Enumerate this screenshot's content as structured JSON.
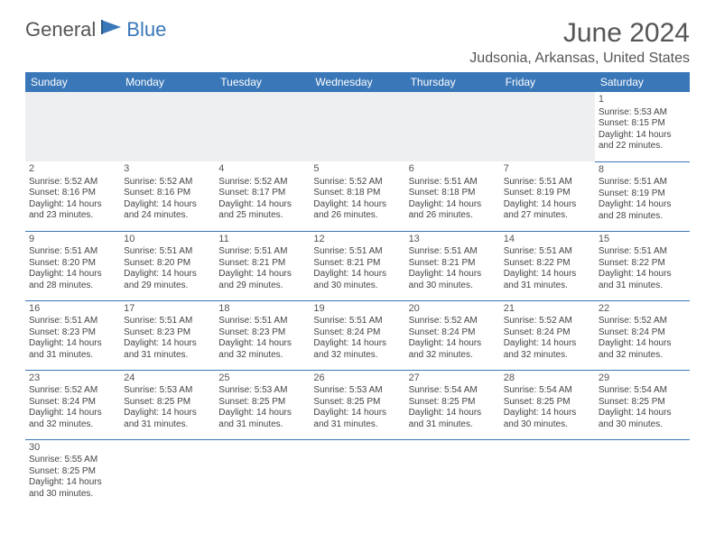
{
  "logo": {
    "general": "General",
    "blue": "Blue"
  },
  "title": "June 2024",
  "location": "Judsonia, Arkansas, United States",
  "weekdays": [
    "Sunday",
    "Monday",
    "Tuesday",
    "Wednesday",
    "Thursday",
    "Friday",
    "Saturday"
  ],
  "colors": {
    "header_bg": "#3a77b8",
    "header_text": "#ffffff",
    "text": "#444444",
    "blank_bg": "#edeff1",
    "border": "#3a77b8"
  },
  "typography": {
    "title_fontsize": 30,
    "location_fontsize": 16,
    "weekday_fontsize": 12,
    "cell_fontsize": 10
  },
  "calendar": {
    "blank_leading": 6,
    "days": [
      {
        "n": 1,
        "sunrise": "5:53 AM",
        "sunset": "8:15 PM",
        "dl_h": 14,
        "dl_m": 22
      },
      {
        "n": 2,
        "sunrise": "5:52 AM",
        "sunset": "8:16 PM",
        "dl_h": 14,
        "dl_m": 23
      },
      {
        "n": 3,
        "sunrise": "5:52 AM",
        "sunset": "8:16 PM",
        "dl_h": 14,
        "dl_m": 24
      },
      {
        "n": 4,
        "sunrise": "5:52 AM",
        "sunset": "8:17 PM",
        "dl_h": 14,
        "dl_m": 25
      },
      {
        "n": 5,
        "sunrise": "5:52 AM",
        "sunset": "8:18 PM",
        "dl_h": 14,
        "dl_m": 26
      },
      {
        "n": 6,
        "sunrise": "5:51 AM",
        "sunset": "8:18 PM",
        "dl_h": 14,
        "dl_m": 26
      },
      {
        "n": 7,
        "sunrise": "5:51 AM",
        "sunset": "8:19 PM",
        "dl_h": 14,
        "dl_m": 27
      },
      {
        "n": 8,
        "sunrise": "5:51 AM",
        "sunset": "8:19 PM",
        "dl_h": 14,
        "dl_m": 28
      },
      {
        "n": 9,
        "sunrise": "5:51 AM",
        "sunset": "8:20 PM",
        "dl_h": 14,
        "dl_m": 28
      },
      {
        "n": 10,
        "sunrise": "5:51 AM",
        "sunset": "8:20 PM",
        "dl_h": 14,
        "dl_m": 29
      },
      {
        "n": 11,
        "sunrise": "5:51 AM",
        "sunset": "8:21 PM",
        "dl_h": 14,
        "dl_m": 29
      },
      {
        "n": 12,
        "sunrise": "5:51 AM",
        "sunset": "8:21 PM",
        "dl_h": 14,
        "dl_m": 30
      },
      {
        "n": 13,
        "sunrise": "5:51 AM",
        "sunset": "8:21 PM",
        "dl_h": 14,
        "dl_m": 30
      },
      {
        "n": 14,
        "sunrise": "5:51 AM",
        "sunset": "8:22 PM",
        "dl_h": 14,
        "dl_m": 31
      },
      {
        "n": 15,
        "sunrise": "5:51 AM",
        "sunset": "8:22 PM",
        "dl_h": 14,
        "dl_m": 31
      },
      {
        "n": 16,
        "sunrise": "5:51 AM",
        "sunset": "8:23 PM",
        "dl_h": 14,
        "dl_m": 31
      },
      {
        "n": 17,
        "sunrise": "5:51 AM",
        "sunset": "8:23 PM",
        "dl_h": 14,
        "dl_m": 31
      },
      {
        "n": 18,
        "sunrise": "5:51 AM",
        "sunset": "8:23 PM",
        "dl_h": 14,
        "dl_m": 32
      },
      {
        "n": 19,
        "sunrise": "5:51 AM",
        "sunset": "8:24 PM",
        "dl_h": 14,
        "dl_m": 32
      },
      {
        "n": 20,
        "sunrise": "5:52 AM",
        "sunset": "8:24 PM",
        "dl_h": 14,
        "dl_m": 32
      },
      {
        "n": 21,
        "sunrise": "5:52 AM",
        "sunset": "8:24 PM",
        "dl_h": 14,
        "dl_m": 32
      },
      {
        "n": 22,
        "sunrise": "5:52 AM",
        "sunset": "8:24 PM",
        "dl_h": 14,
        "dl_m": 32
      },
      {
        "n": 23,
        "sunrise": "5:52 AM",
        "sunset": "8:24 PM",
        "dl_h": 14,
        "dl_m": 32
      },
      {
        "n": 24,
        "sunrise": "5:53 AM",
        "sunset": "8:25 PM",
        "dl_h": 14,
        "dl_m": 31
      },
      {
        "n": 25,
        "sunrise": "5:53 AM",
        "sunset": "8:25 PM",
        "dl_h": 14,
        "dl_m": 31
      },
      {
        "n": 26,
        "sunrise": "5:53 AM",
        "sunset": "8:25 PM",
        "dl_h": 14,
        "dl_m": 31
      },
      {
        "n": 27,
        "sunrise": "5:54 AM",
        "sunset": "8:25 PM",
        "dl_h": 14,
        "dl_m": 31
      },
      {
        "n": 28,
        "sunrise": "5:54 AM",
        "sunset": "8:25 PM",
        "dl_h": 14,
        "dl_m": 30
      },
      {
        "n": 29,
        "sunrise": "5:54 AM",
        "sunset": "8:25 PM",
        "dl_h": 14,
        "dl_m": 30
      },
      {
        "n": 30,
        "sunrise": "5:55 AM",
        "sunset": "8:25 PM",
        "dl_h": 14,
        "dl_m": 30
      }
    ]
  },
  "labels": {
    "sunrise_prefix": "Sunrise: ",
    "sunset_prefix": "Sunset: ",
    "daylight_prefix": "Daylight: ",
    "hours_word": " hours",
    "and_word": "and ",
    "minutes_word": " minutes."
  }
}
